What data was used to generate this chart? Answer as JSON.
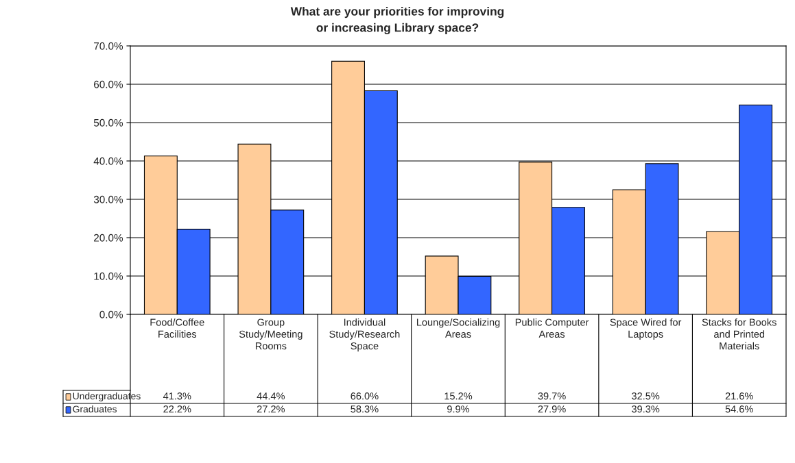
{
  "chart_data": {
    "type": "bar",
    "title": "What are your priorities for improving\nor increasing Library space?",
    "categories": [
      "Food/Coffee Facilities",
      "Group Study/Meeting Rooms",
      "Individual Study/Research Space",
      "Lounge/Socializing Areas",
      "Public Computer Areas",
      "Space Wired for Laptops",
      "Stacks for Books and Printed Materials"
    ],
    "series": [
      {
        "name": "Undergraduates",
        "color": "#ffcc99",
        "values": [
          41.3,
          44.4,
          66.0,
          15.2,
          39.7,
          32.5,
          21.6
        ],
        "value_labels": [
          "41.3%",
          "44.4%",
          "66.0%",
          "15.2%",
          "39.7%",
          "32.5%",
          "21.6%"
        ]
      },
      {
        "name": "Graduates",
        "color": "#3366ff",
        "values": [
          22.2,
          27.2,
          58.3,
          9.9,
          27.9,
          39.3,
          54.6
        ],
        "value_labels": [
          "22.2%",
          "27.2%",
          "58.3%",
          "9.9%",
          "27.9%",
          "39.3%",
          "54.6%"
        ]
      }
    ],
    "ylim": [
      0,
      70
    ],
    "yticks": [
      {
        "value": 0,
        "label": "0.0%"
      },
      {
        "value": 10,
        "label": "10.0%"
      },
      {
        "value": 20,
        "label": "20.0%"
      },
      {
        "value": 30,
        "label": "30.0%"
      },
      {
        "value": 40,
        "label": "40.0%"
      },
      {
        "value": 50,
        "label": "50.0%"
      },
      {
        "value": 60,
        "label": "60.0%"
      },
      {
        "value": 70,
        "label": "70.0%"
      }
    ],
    "grid": "y",
    "legend": "bottom left"
  }
}
